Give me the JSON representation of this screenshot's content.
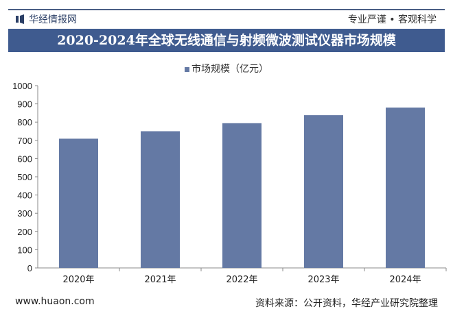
{
  "header": {
    "logo_text": "华经情报网",
    "slogan": "专业严谨 • 客观科学",
    "logo_icon": "bar-logo-icon",
    "accent": "#3f5b8f"
  },
  "chart_data": {
    "type": "bar",
    "title": "2020-2024年全球无线通信与射频微波测试仪器市场规模",
    "categories": [
      "2020年",
      "2021年",
      "2022年",
      "2023年",
      "2024年"
    ],
    "series": [
      {
        "name": "市场规模（亿元）",
        "values": [
          709,
          750,
          794,
          838,
          880
        ],
        "color": "#6479a4"
      }
    ],
    "ylim": [
      0,
      1000
    ],
    "yticks": [
      0,
      100,
      200,
      300,
      400,
      500,
      600,
      700,
      800,
      900,
      1000
    ],
    "legend": "top-center",
    "grid": false
  },
  "footer": {
    "website": "www.huaon.com",
    "source": "资料来源：公开资料，华经产业研究院整理"
  }
}
